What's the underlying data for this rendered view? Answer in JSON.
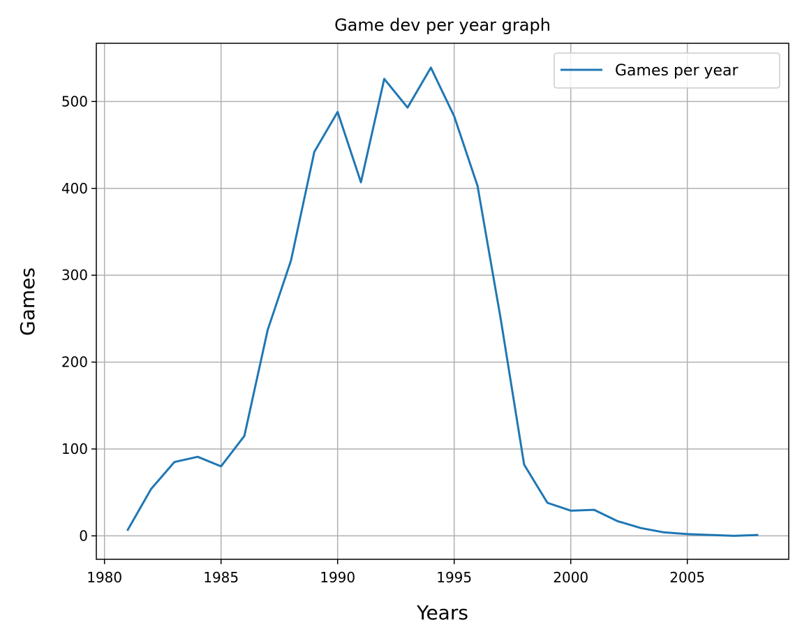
{
  "chart_data": {
    "type": "line",
    "title": "Game dev per year graph",
    "xlabel": "Years",
    "ylabel": "Games",
    "xlim": [
      1979.65,
      2009.35
    ],
    "ylim": [
      -27,
      567
    ],
    "xticks": [
      1980,
      1985,
      1990,
      1995,
      2000,
      2005
    ],
    "yticks": [
      0,
      100,
      200,
      300,
      400,
      500
    ],
    "grid": true,
    "legend_position": "top-right",
    "series": [
      {
        "name": "Games per year",
        "color": "#1f77b4",
        "x": [
          1981,
          1982,
          1983,
          1984,
          1985,
          1986,
          1987,
          1988,
          1989,
          1990,
          1991,
          1992,
          1993,
          1994,
          1995,
          1996,
          1997,
          1998,
          1999,
          2000,
          2001,
          2002,
          2003,
          2004,
          2005,
          2006,
          2007,
          2008
        ],
        "y": [
          7,
          54,
          85,
          91,
          80,
          115,
          237,
          317,
          442,
          488,
          407,
          526,
          493,
          539,
          483,
          403,
          249,
          82,
          38,
          29,
          30,
          17,
          9,
          4,
          2,
          1,
          0,
          1
        ]
      }
    ]
  }
}
